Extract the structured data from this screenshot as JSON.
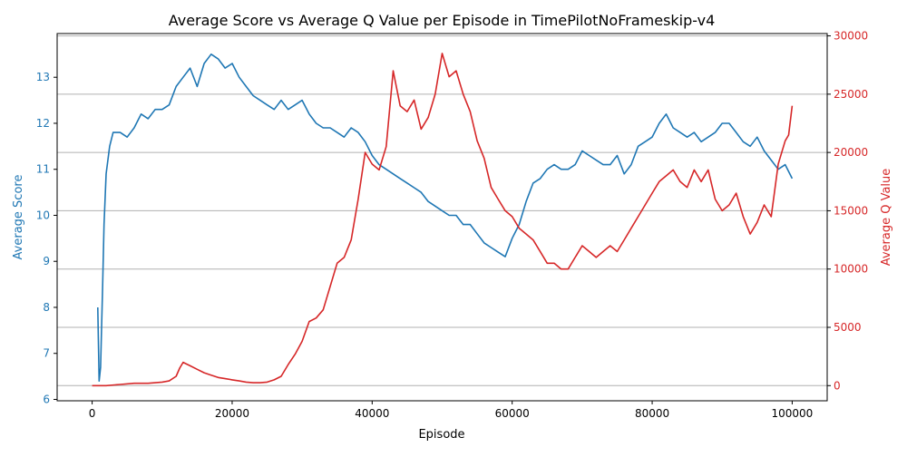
{
  "chart_data": {
    "type": "line",
    "title": "Average Score vs Average Q Value per Episode in TimePilotNoFrameskip-v4",
    "xlabel": "Episode",
    "ylabel_left": "Average Score",
    "ylabel_right": "Average Q Value",
    "xlim": [
      -5000,
      105000
    ],
    "ylim_left": [
      5.97,
      13.95
    ],
    "ylim_right": [
      -1300,
      30200
    ],
    "x_ticks": [
      0,
      20000,
      40000,
      60000,
      80000,
      100000
    ],
    "y_left_ticks": [
      6,
      7,
      8,
      9,
      10,
      11,
      12,
      13
    ],
    "y_right_ticks": [
      0,
      5000,
      10000,
      15000,
      20000,
      25000,
      30000
    ],
    "grid": "horizontal lines at right-axis ticks",
    "colors": {
      "score": "#1f77b4",
      "q": "#d62728",
      "grid": "#b0b0b0",
      "axis": "#000000"
    },
    "series": [
      {
        "axis": "left",
        "x": [
          800,
          1000,
          1200,
          1500,
          1700,
          2000,
          2500,
          3000,
          4000,
          5000,
          6000,
          7000,
          8000,
          9000,
          10000,
          11000,
          12000,
          13000,
          14000,
          15000,
          16000,
          17000,
          18000,
          19000,
          20000,
          21000,
          22000,
          23000,
          24000,
          25000,
          26000,
          27000,
          28000,
          29000,
          30000,
          31000,
          32000,
          33000,
          34000,
          35000,
          36000,
          37000,
          38000,
          39000,
          40000,
          41000,
          42000,
          43000,
          44000,
          45000,
          46000,
          47000,
          48000,
          49000,
          50000,
          51000,
          52000,
          53000,
          54000,
          55000,
          56000,
          57000,
          58000,
          59000,
          60000,
          61000,
          62000,
          63000,
          64000,
          65000,
          66000,
          67000,
          68000,
          69000,
          70000,
          71000,
          72000,
          73000,
          74000,
          75000,
          76000,
          77000,
          78000,
          79000,
          80000,
          81000,
          82000,
          83000,
          84000,
          85000,
          86000,
          87000,
          88000,
          89000,
          90000,
          91000,
          92000,
          93000,
          94000,
          95000,
          96000,
          97000,
          98000,
          99000,
          100000
        ],
        "y": [
          8.0,
          6.4,
          6.7,
          8.5,
          9.8,
          10.9,
          11.5,
          11.8,
          11.8,
          11.7,
          11.9,
          12.2,
          12.1,
          12.3,
          12.3,
          12.4,
          12.8,
          13.0,
          13.2,
          12.8,
          13.3,
          13.5,
          13.4,
          13.2,
          13.3,
          13.0,
          12.8,
          12.6,
          12.5,
          12.4,
          12.3,
          12.5,
          12.3,
          12.4,
          12.5,
          12.2,
          12.0,
          11.9,
          11.9,
          11.8,
          11.7,
          11.9,
          11.8,
          11.6,
          11.3,
          11.1,
          11.0,
          10.9,
          10.8,
          10.7,
          10.6,
          10.5,
          10.3,
          10.2,
          10.1,
          10.0,
          10.0,
          9.8,
          9.8,
          9.6,
          9.4,
          9.3,
          9.2,
          9.1,
          9.5,
          9.8,
          10.3,
          10.7,
          10.8,
          11.0,
          11.1,
          11.0,
          11.0,
          11.1,
          11.4,
          11.3,
          11.2,
          11.1,
          11.1,
          11.3,
          10.9,
          11.1,
          11.5,
          11.6,
          11.7,
          12.0,
          12.2,
          11.9,
          11.8,
          11.7,
          11.8,
          11.6,
          11.7,
          11.8,
          12.0,
          12.0,
          11.8,
          11.6,
          11.5,
          11.7,
          11.4,
          11.2,
          11.0,
          11.1,
          10.8
        ]
      },
      {
        "axis": "right",
        "x": [
          0,
          2000,
          4000,
          6000,
          8000,
          10000,
          11000,
          12000,
          12500,
          13000,
          14000,
          15000,
          16000,
          17000,
          18000,
          19000,
          20000,
          21000,
          22000,
          23000,
          24000,
          25000,
          26000,
          27000,
          28000,
          29000,
          30000,
          31000,
          32000,
          33000,
          34000,
          35000,
          36000,
          37000,
          38000,
          39000,
          40000,
          41000,
          42000,
          43000,
          44000,
          45000,
          46000,
          47000,
          48000,
          49000,
          50000,
          51000,
          52000,
          53000,
          54000,
          55000,
          56000,
          57000,
          58000,
          59000,
          60000,
          61000,
          62000,
          63000,
          64000,
          65000,
          66000,
          67000,
          68000,
          69000,
          70000,
          71000,
          72000,
          73000,
          74000,
          75000,
          76000,
          77000,
          78000,
          79000,
          80000,
          81000,
          82000,
          83000,
          84000,
          85000,
          86000,
          87000,
          88000,
          89000,
          90000,
          91000,
          92000,
          93000,
          94000,
          95000,
          96000,
          97000,
          98000,
          99000,
          99500,
          100000
        ],
        "y": [
          0,
          0,
          100,
          200,
          200,
          300,
          400,
          800,
          1500,
          2000,
          1700,
          1400,
          1100,
          900,
          700,
          600,
          500,
          400,
          300,
          250,
          250,
          300,
          500,
          800,
          1800,
          2700,
          3800,
          5500,
          5800,
          6500,
          8500,
          10500,
          11000,
          12500,
          16000,
          20000,
          19000,
          18500,
          20500,
          27000,
          24000,
          23500,
          24500,
          22000,
          23000,
          25000,
          28500,
          26500,
          27000,
          25000,
          23500,
          21000,
          19500,
          17000,
          16000,
          15000,
          14500,
          13500,
          13000,
          12500,
          11500,
          10500,
          10500,
          10000,
          10000,
          11000,
          12000,
          11500,
          11000,
          11500,
          12000,
          11500,
          12500,
          13500,
          14500,
          15500,
          16500,
          17500,
          18000,
          18500,
          17500,
          17000,
          18500,
          17500,
          18500,
          16000,
          15000,
          15500,
          16500,
          14500,
          13000,
          14000,
          15500,
          14500,
          19000,
          21000,
          21500,
          24000
        ]
      }
    ]
  }
}
